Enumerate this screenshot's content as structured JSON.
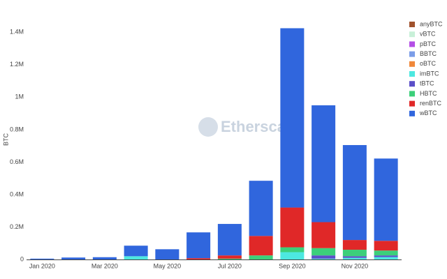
{
  "chart_data": {
    "type": "stacked_bar",
    "y_label": "BTC",
    "watermark": "Etherscan",
    "categories": [
      "Jan 2020",
      null,
      "Mar 2020",
      null,
      "May 2020",
      null,
      "Jul 2020",
      null,
      "Sep 2020",
      null,
      "Nov 2020",
      null
    ],
    "ylim": [
      0,
      1470000
    ],
    "yticks": [
      0,
      {
        "value": 200000,
        "label": "0.2M"
      },
      {
        "value": 400000,
        "label": "0.4M"
      },
      {
        "value": 600000,
        "label": "0.6M"
      },
      {
        "value": 800000,
        "label": "0.8M"
      },
      {
        "value": 1000000,
        "label": "1M"
      },
      {
        "value": 1200000,
        "label": "1.2M"
      },
      {
        "value": 1400000,
        "label": "1.4M"
      }
    ],
    "grid": false,
    "series": [
      {
        "name": "anyBTC",
        "color": "#a0522d",
        "values": [
          0,
          0,
          0,
          0,
          0,
          0,
          0,
          0,
          0,
          0,
          0,
          0
        ]
      },
      {
        "name": "vBTC",
        "color": "#c8f0d8",
        "values": [
          0,
          0,
          0,
          0,
          0,
          0,
          0,
          0,
          0,
          0,
          0,
          0
        ]
      },
      {
        "name": "pBTC",
        "color": "#b44fe6",
        "values": [
          0,
          0,
          0,
          0,
          0,
          0,
          0,
          0,
          0,
          0,
          0,
          0
        ]
      },
      {
        "name": "BBTC",
        "color": "#7b9de8",
        "values": [
          0,
          0,
          0,
          0,
          0,
          0,
          0,
          0,
          0,
          0,
          0,
          0
        ]
      },
      {
        "name": "oBTC",
        "color": "#f0883a",
        "values": [
          0,
          0,
          0,
          0,
          0,
          0,
          0,
          0,
          0,
          0,
          0,
          0
        ]
      },
      {
        "name": "imBTC",
        "color": "#4de8e0",
        "values": [
          0,
          0,
          0,
          20000,
          0,
          0,
          0,
          0,
          45000,
          5000,
          10000,
          15000
        ]
      },
      {
        "name": "tBTC",
        "color": "#5b4fc8",
        "values": [
          0,
          0,
          0,
          0,
          0,
          0,
          0,
          0,
          0,
          20000,
          10000,
          10000
        ]
      },
      {
        "name": "HBTC",
        "color": "#3ccf7a",
        "values": [
          0,
          0,
          0,
          0,
          0,
          0,
          5000,
          25000,
          30000,
          45000,
          40000,
          30000
        ]
      },
      {
        "name": "renBTC",
        "color": "#e02828",
        "values": [
          0,
          0,
          0,
          0,
          0,
          8000,
          20000,
          120000,
          245000,
          160000,
          60000,
          60000
        ]
      },
      {
        "name": "wBTC",
        "color": "#3066dd",
        "values": [
          5000,
          12000,
          14000,
          65000,
          63000,
          159000,
          194000,
          340000,
          1105000,
          720000,
          585000,
          507000
        ]
      }
    ]
  }
}
